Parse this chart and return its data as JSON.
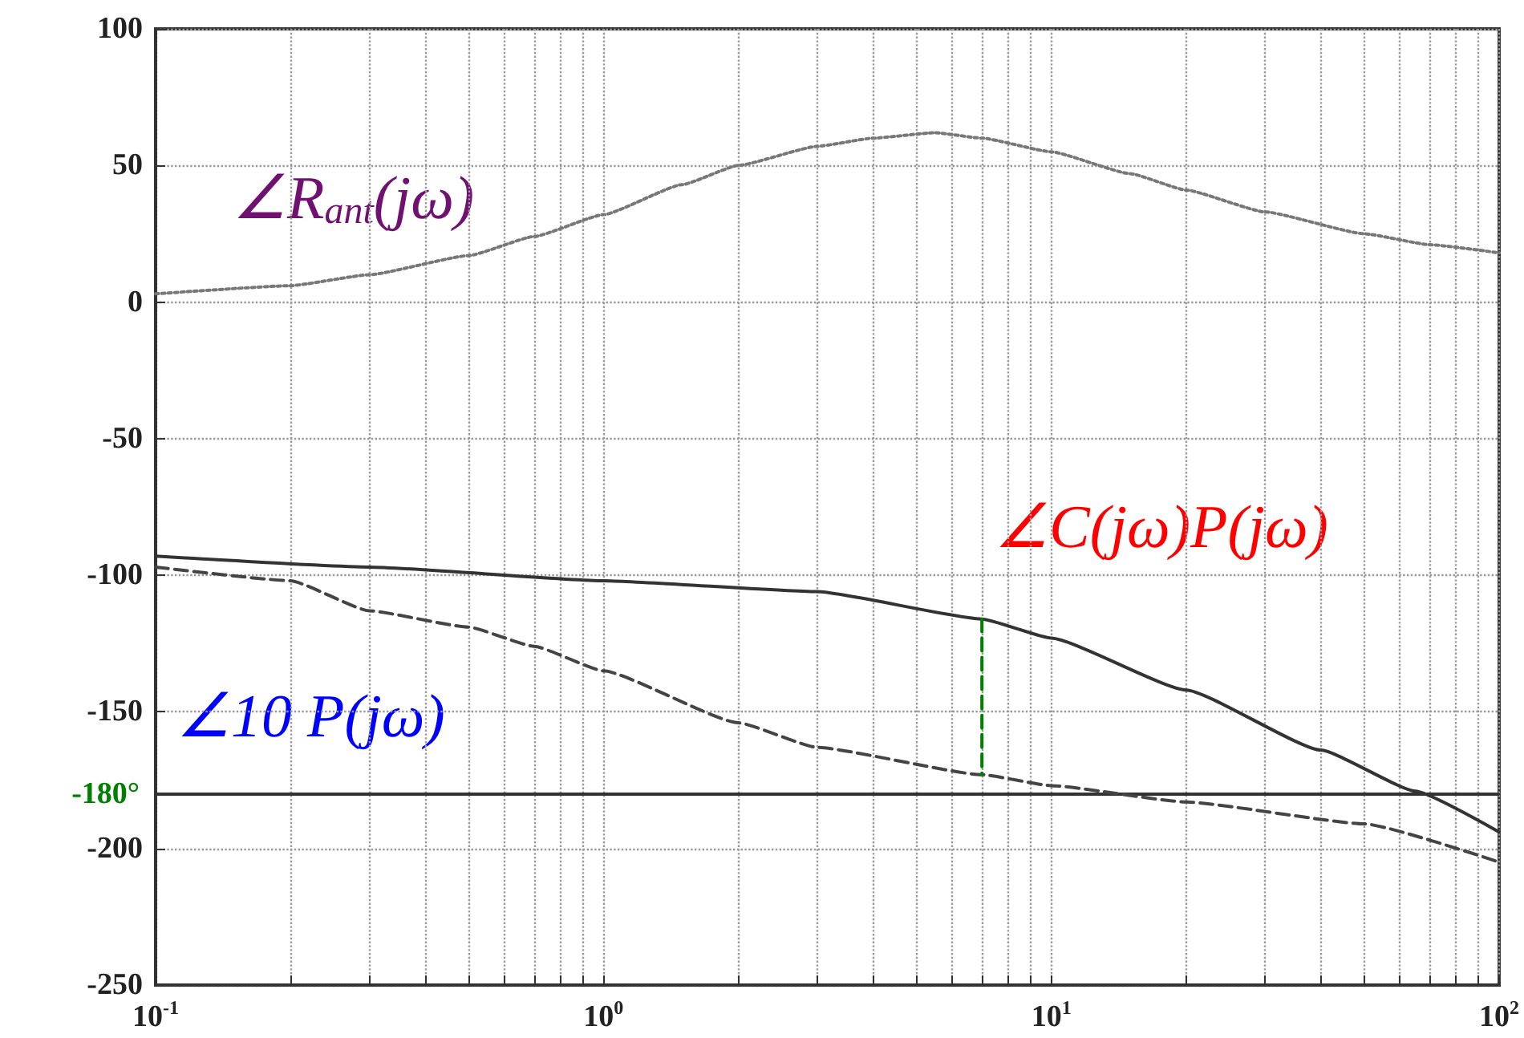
{
  "chart_data": {
    "type": "line",
    "series": [
      {
        "color": "#777777",
        "line_style": "dotted",
        "x": [
          0.1,
          0.2,
          0.3,
          0.5,
          0.7,
          1,
          1.5,
          2,
          3,
          4,
          5.5,
          7,
          10,
          15,
          20,
          30,
          50,
          70,
          100
        ],
        "values": [
          3,
          6,
          10,
          17,
          24,
          32,
          43,
          50,
          57,
          60,
          62,
          60,
          55,
          47,
          41,
          33,
          25,
          21,
          18
        ]
      },
      {
        "color": "#333333",
        "line_style": "solid",
        "x": [
          0.1,
          0.3,
          1,
          3,
          7,
          10,
          20,
          40,
          65,
          100
        ],
        "values": [
          -93,
          -97,
          -102,
          -106,
          -116,
          -123,
          -142,
          -164,
          -179,
          -194
        ]
      },
      {
        "color": "#444444",
        "line_style": "dashed",
        "x": [
          0.1,
          0.2,
          0.3,
          0.5,
          0.7,
          1,
          2,
          3,
          7,
          10,
          20,
          50,
          100
        ],
        "values": [
          -97,
          -102,
          -113,
          -119,
          -126,
          -135,
          -154,
          -163,
          -173,
          -177,
          -183,
          -191,
          -205
        ]
      },
      {
        "color": "#008000",
        "line_style": "dashed",
        "x": [
          7,
          7
        ],
        "values": [
          -116,
          -173
        ]
      }
    ],
    "xlim": [
      0.1,
      100
    ],
    "ylim": [
      -250,
      100
    ],
    "xticks": [
      {
        "value": 0.1,
        "label": "10$^{-1}$"
      },
      {
        "value": 0.2,
        "label": null
      },
      {
        "value": 0.3,
        "label": null
      },
      {
        "value": 0.4,
        "label": null
      },
      {
        "value": 0.5,
        "label": null
      },
      {
        "value": 0.6,
        "label": null
      },
      {
        "value": 0.7,
        "label": null
      },
      {
        "value": 0.8,
        "label": null
      },
      {
        "value": 0.9,
        "label": null
      },
      {
        "value": 1,
        "label": "10$^{0}$"
      },
      {
        "value": 2,
        "label": null
      },
      {
        "value": 3,
        "label": null
      },
      {
        "value": 4,
        "label": null
      },
      {
        "value": 5,
        "label": null
      },
      {
        "value": 6,
        "label": null
      },
      {
        "value": 7,
        "label": null
      },
      {
        "value": 8,
        "label": null
      },
      {
        "value": 9,
        "label": null
      },
      {
        "value": 10,
        "label": "10$^{1}$"
      },
      {
        "value": 20,
        "label": null
      },
      {
        "value": 30,
        "label": null
      },
      {
        "value": 40,
        "label": null
      },
      {
        "value": 50,
        "label": null
      },
      {
        "value": 60,
        "label": null
      },
      {
        "value": 70,
        "label": null
      },
      {
        "value": 80,
        "label": null
      },
      {
        "value": 90,
        "label": null
      },
      {
        "value": 100,
        "label": "10$^{2}$"
      }
    ],
    "yticks": [
      -250,
      -200,
      -150,
      -100,
      -50,
      0,
      50,
      100
    ],
    "log": "x",
    "grid": true,
    "marker": "none",
    "ref_lines": [
      {
        "axis": "y",
        "value": -180,
        "label": "-180°"
      }
    ],
    "annotations": [
      "∠R$_{ant}$(jω)",
      "∠C(jω)P(jω)",
      "∠10 P(jω)"
    ]
  }
}
